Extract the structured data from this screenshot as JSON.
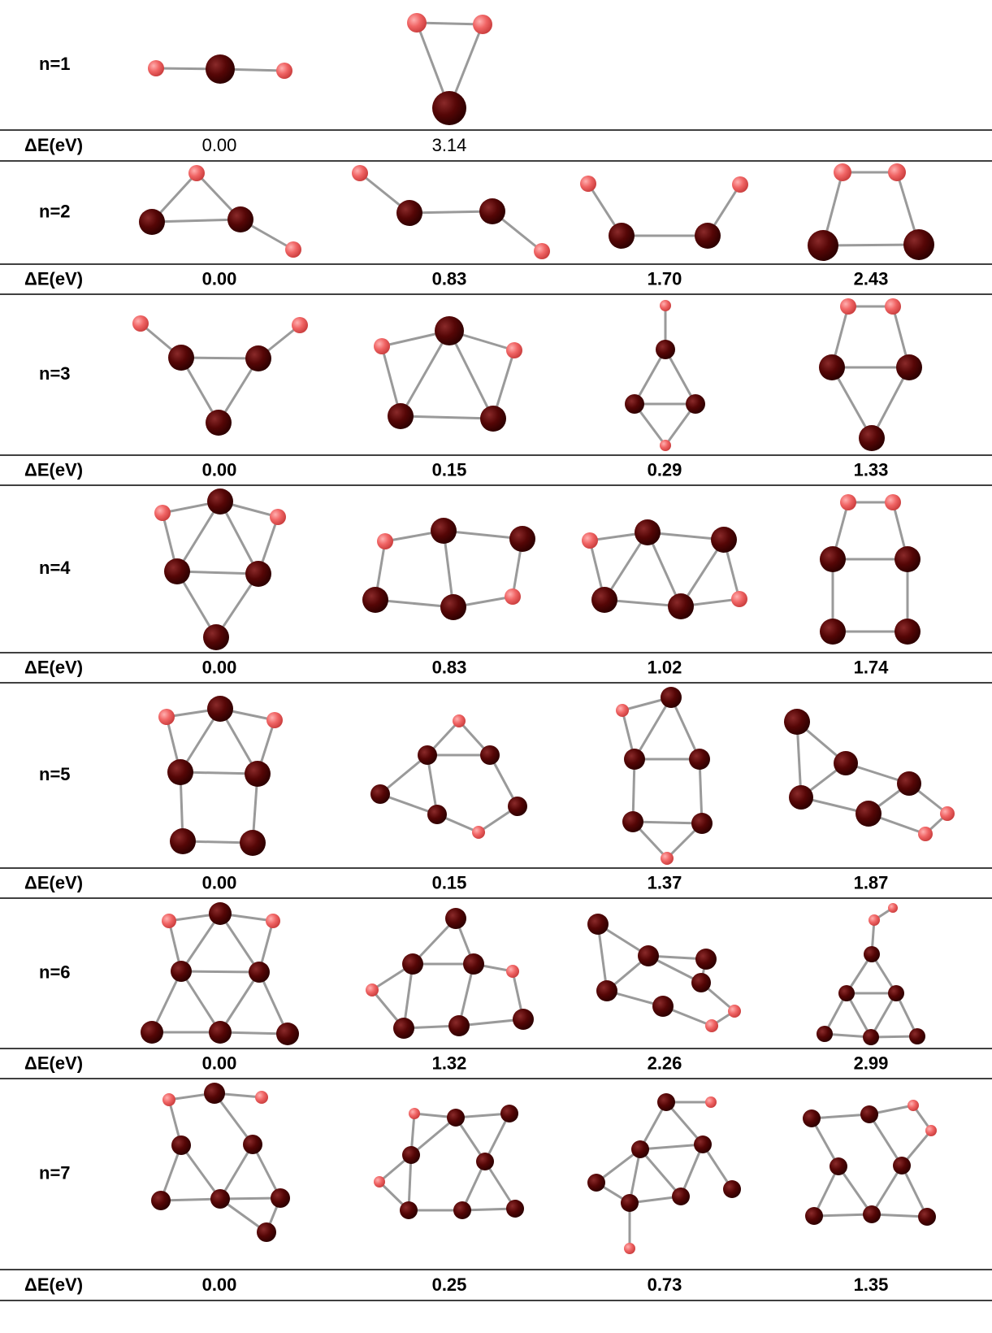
{
  "rows": [
    {
      "label": "n=1",
      "energy_label": "ΔE(eV)",
      "energies": [
        "0.00",
        "3.14"
      ]
    },
    {
      "label": "n=2",
      "energy_label": "ΔE(eV)",
      "energies": [
        "0.00",
        "0.83",
        "1.70",
        "2.43"
      ]
    },
    {
      "label": "n=3",
      "energy_label": "ΔE(eV)",
      "energies": [
        "0.00",
        "0.15",
        "0.29",
        "1.33"
      ]
    },
    {
      "label": "n=4",
      "energy_label": "ΔE(eV)",
      "energies": [
        "0.00",
        "0.83",
        "1.02",
        "1.74"
      ]
    },
    {
      "label": "n=5",
      "energy_label": "ΔE(eV)",
      "energies": [
        "0.00",
        "0.15",
        "1.37",
        "1.87"
      ]
    },
    {
      "label": "n=6",
      "energy_label": "ΔE(eV)",
      "energies": [
        "0.00",
        "1.32",
        "2.26",
        "2.99"
      ]
    },
    {
      "label": "n=7",
      "energy_label": "ΔE(eV)",
      "energies": [
        "0.00",
        "0.25",
        "0.73",
        "1.35"
      ]
    }
  ]
}
